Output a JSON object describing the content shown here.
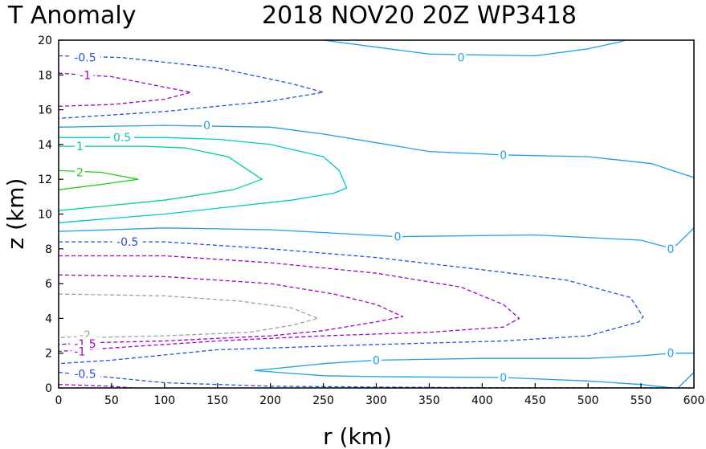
{
  "chart_data": {
    "type": "contour",
    "title_left": "T Anomaly",
    "title_right": "2018 NOV20 20Z   WP3418",
    "xlabel": "r (km)",
    "ylabel": "z (km)",
    "xlim": [
      0,
      600
    ],
    "ylim": [
      0,
      20
    ],
    "xticks": [
      "0",
      "50",
      "100",
      "150",
      "200",
      "250",
      "300",
      "350",
      "400",
      "450",
      "500",
      "550",
      "600"
    ],
    "yticks": [
      "0",
      "2",
      "4",
      "6",
      "8",
      "10",
      "12",
      "14",
      "16",
      "18",
      "20"
    ],
    "level_colors": {
      "-2": "#a0a0a0",
      "-1.5": "#a000c8",
      "-1": "#a000c8",
      "-0.5": "#2850dc",
      "0": "#1ea0e6",
      "0.5": "#00c8c8",
      "1": "#00d28c",
      "2": "#28c828"
    },
    "contours": [
      {
        "level": -0.5,
        "closed": false,
        "points": [
          [
            0,
            19.1
          ],
          [
            60,
            19.0
          ],
          [
            150,
            18.4
          ],
          [
            220,
            17.5
          ],
          [
            250,
            17.0
          ],
          [
            200,
            16.5
          ],
          [
            100,
            15.9
          ],
          [
            0,
            15.5
          ]
        ]
      },
      {
        "level": -1,
        "closed": false,
        "points": [
          [
            0,
            18.1
          ],
          [
            50,
            17.9
          ],
          [
            100,
            17.3
          ],
          [
            125,
            17.0
          ],
          [
            100,
            16.6
          ],
          [
            50,
            16.3
          ],
          [
            0,
            16.2
          ]
        ]
      },
      {
        "level": 0,
        "closed": false,
        "points": [
          [
            250,
            20
          ],
          [
            300,
            19.6
          ],
          [
            350,
            19.2
          ],
          [
            450,
            19.1
          ],
          [
            500,
            19.5
          ],
          [
            530,
            19.9
          ],
          [
            535,
            20
          ]
        ]
      },
      {
        "level": 0,
        "closed": false,
        "points": [
          [
            0,
            15.0
          ],
          [
            100,
            15.1
          ],
          [
            200,
            15.0
          ],
          [
            250,
            14.6
          ],
          [
            300,
            14.1
          ],
          [
            350,
            13.6
          ],
          [
            420,
            13.4
          ],
          [
            500,
            13.3
          ],
          [
            560,
            12.9
          ],
          [
            590,
            12.3
          ],
          [
            600,
            12.1
          ]
        ]
      },
      {
        "level": 0.5,
        "closed": false,
        "points": [
          [
            0,
            14.4
          ],
          [
            100,
            14.4
          ],
          [
            150,
            14.3
          ],
          [
            200,
            14.0
          ],
          [
            250,
            13.3
          ],
          [
            265,
            12.5
          ],
          [
            272,
            11.5
          ],
          [
            260,
            11.2
          ],
          [
            220,
            10.8
          ],
          [
            100,
            10.0
          ],
          [
            0,
            9.5
          ]
        ]
      },
      {
        "level": 1,
        "closed": false,
        "points": [
          [
            0,
            13.9
          ],
          [
            80,
            13.9
          ],
          [
            120,
            13.8
          ],
          [
            160,
            13.3
          ],
          [
            192,
            12.0
          ],
          [
            165,
            11.4
          ],
          [
            100,
            10.8
          ],
          [
            0,
            10.2
          ]
        ]
      },
      {
        "level": 2,
        "closed": false,
        "points": [
          [
            0,
            12.5
          ],
          [
            40,
            12.4
          ],
          [
            75,
            12.0
          ],
          [
            40,
            11.7
          ],
          [
            0,
            11.4
          ]
        ]
      },
      {
        "level": 0,
        "closed": false,
        "points": [
          [
            0,
            9.0
          ],
          [
            100,
            9.2
          ],
          [
            200,
            9.1
          ],
          [
            320,
            8.7
          ],
          [
            450,
            8.8
          ],
          [
            550,
            8.5
          ],
          [
            580,
            8.0
          ],
          [
            595,
            8.9
          ],
          [
            600,
            9.2
          ]
        ]
      },
      {
        "level": -0.5,
        "closed": false,
        "points": [
          [
            0,
            8.4
          ],
          [
            100,
            8.4
          ],
          [
            200,
            8.0
          ],
          [
            300,
            7.5
          ],
          [
            400,
            6.8
          ],
          [
            480,
            6.2
          ],
          [
            540,
            5.2
          ],
          [
            552,
            4.1
          ],
          [
            548,
            3.8
          ],
          [
            500,
            3.0
          ],
          [
            420,
            2.7
          ],
          [
            300,
            2.5
          ],
          [
            150,
            2.2
          ],
          [
            50,
            1.6
          ],
          [
            0,
            1.4
          ]
        ]
      },
      {
        "level": -1,
        "closed": false,
        "points": [
          [
            0,
            7.6
          ],
          [
            100,
            7.6
          ],
          [
            200,
            7.2
          ],
          [
            300,
            6.6
          ],
          [
            380,
            5.8
          ],
          [
            420,
            4.8
          ],
          [
            435,
            4.0
          ],
          [
            420,
            3.5
          ],
          [
            350,
            3.2
          ],
          [
            250,
            3.0
          ],
          [
            150,
            2.7
          ],
          [
            50,
            2.3
          ],
          [
            0,
            2.1
          ]
        ]
      },
      {
        "level": -1.5,
        "closed": false,
        "points": [
          [
            0,
            6.5
          ],
          [
            100,
            6.4
          ],
          [
            200,
            6.0
          ],
          [
            260,
            5.4
          ],
          [
            300,
            4.8
          ],
          [
            325,
            4.1
          ],
          [
            300,
            3.8
          ],
          [
            250,
            3.3
          ],
          [
            200,
            3.0
          ],
          [
            100,
            2.7
          ],
          [
            30,
            2.6
          ],
          [
            0,
            2.5
          ]
        ]
      },
      {
        "level": -2,
        "closed": false,
        "points": [
          [
            0,
            5.4
          ],
          [
            100,
            5.3
          ],
          [
            170,
            5.0
          ],
          [
            220,
            4.6
          ],
          [
            245,
            4.0
          ],
          [
            220,
            3.6
          ],
          [
            180,
            3.2
          ],
          [
            100,
            3.0
          ],
          [
            30,
            2.9
          ],
          [
            25,
            3.2
          ],
          [
            20,
            2.95
          ],
          [
            0,
            2.9
          ]
        ]
      },
      {
        "level": -0.5,
        "closed": false,
        "points": [
          [
            0,
            0.9
          ],
          [
            100,
            0.3
          ],
          [
            200,
            0.1
          ],
          [
            300,
            0.05
          ],
          [
            400,
            0.02
          ],
          [
            500,
            0.01
          ],
          [
            600,
            0.0
          ]
        ]
      },
      {
        "level": -1,
        "closed": false,
        "points": [
          [
            0,
            0.2
          ],
          [
            50,
            0.1
          ],
          [
            70,
            0.0
          ]
        ]
      },
      {
        "level": 0,
        "closed": false,
        "points": [
          [
            185,
            1.0
          ],
          [
            250,
            1.4
          ],
          [
            300,
            1.6
          ],
          [
            400,
            1.7
          ],
          [
            500,
            1.7
          ],
          [
            550,
            1.85
          ],
          [
            580,
            2.0
          ],
          [
            600,
            2.0
          ]
        ]
      },
      {
        "level": 0,
        "closed": false,
        "points": [
          [
            185,
            1.0
          ],
          [
            250,
            0.7
          ],
          [
            300,
            0.65
          ],
          [
            420,
            0.6
          ],
          [
            500,
            0.4
          ],
          [
            550,
            0.2
          ],
          [
            580,
            0.0
          ]
        ]
      },
      {
        "level": 0,
        "closed": false,
        "points": [
          [
            585,
            0
          ],
          [
            595,
            0.6
          ],
          [
            600,
            0.9
          ]
        ]
      }
    ],
    "contour_labels": [
      {
        "text": "-0.5",
        "level": -0.5,
        "x": 25,
        "y": 19.0
      },
      {
        "text": "-1",
        "level": -1,
        "x": 25,
        "y": 18.0
      },
      {
        "text": "0",
        "level": 0,
        "x": 380,
        "y": 19.0
      },
      {
        "text": "0",
        "level": 0,
        "x": 140,
        "y": 15.1
      },
      {
        "text": "0",
        "level": 0,
        "x": 420,
        "y": 13.4
      },
      {
        "text": "0.5",
        "level": 0.5,
        "x": 60,
        "y": 14.4
      },
      {
        "text": "1",
        "level": 1,
        "x": 20,
        "y": 13.9
      },
      {
        "text": "2",
        "level": 2,
        "x": 20,
        "y": 12.4
      },
      {
        "text": "0",
        "level": 0,
        "x": 320,
        "y": 8.7
      },
      {
        "text": "0",
        "level": 0,
        "x": 578,
        "y": 8.0
      },
      {
        "text": "-0.5",
        "level": -0.5,
        "x": 65,
        "y": 8.4
      },
      {
        "text": "-2",
        "level": -2,
        "x": 25,
        "y": 3.05
      },
      {
        "text": "-1.5",
        "level": -1.5,
        "x": 25,
        "y": 2.55
      },
      {
        "text": "-1",
        "level": -1,
        "x": 20,
        "y": 2.1
      },
      {
        "text": "0",
        "level": 0,
        "x": 300,
        "y": 1.6
      },
      {
        "text": "0",
        "level": 0,
        "x": 578,
        "y": 2.0
      },
      {
        "text": "0",
        "level": 0,
        "x": 420,
        "y": 0.6
      },
      {
        "text": "-0.5",
        "level": -0.5,
        "x": 25,
        "y": 0.8
      }
    ]
  }
}
